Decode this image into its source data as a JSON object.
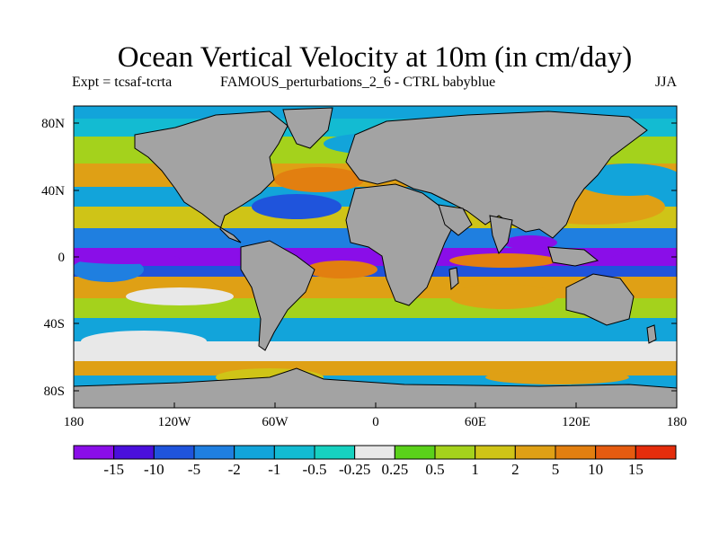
{
  "title": "Ocean Vertical Velocity at 10m (in cm/day)",
  "subtitle_left": "Expt = tcsaf-tcrta",
  "subtitle_center": "FAMOUS_perturbations_2_6 - CTRL babyblue",
  "season": "JJA",
  "lat_ticks": [
    "80N",
    "40N",
    "0",
    "40S",
    "80S"
  ],
  "lon_ticks": [
    "180",
    "120W",
    "60W",
    "0",
    "60E",
    "120E",
    "180"
  ],
  "colorbar": {
    "labels": [
      "-15",
      "-10",
      "-5",
      "-2",
      "-1",
      "-0.5",
      "-0.25",
      "0.25",
      "0.5",
      "1",
      "2",
      "5",
      "10",
      "15"
    ],
    "colors": [
      "#8a0ee8",
      "#4a0fdc",
      "#1f54dc",
      "#1f7fe0",
      "#12a4da",
      "#13bbd2",
      "#16d1c0",
      "#e8e8e8",
      "#5ad11a",
      "#a4d21c",
      "#cfc417",
      "#dfa015",
      "#e27f10",
      "#e55b10",
      "#e42d0c"
    ]
  },
  "map": {
    "land_color": "#a3a3a3",
    "ocean_colors": {
      "strong_downwelling": "#8a0ee8",
      "downwelling": "#1f54dc",
      "weak_down": "#12a4da",
      "neutral": "#e8e8e8",
      "weak_up": "#a4d21c",
      "upwelling": "#dfa015",
      "strong_up": "#e55b10"
    }
  }
}
